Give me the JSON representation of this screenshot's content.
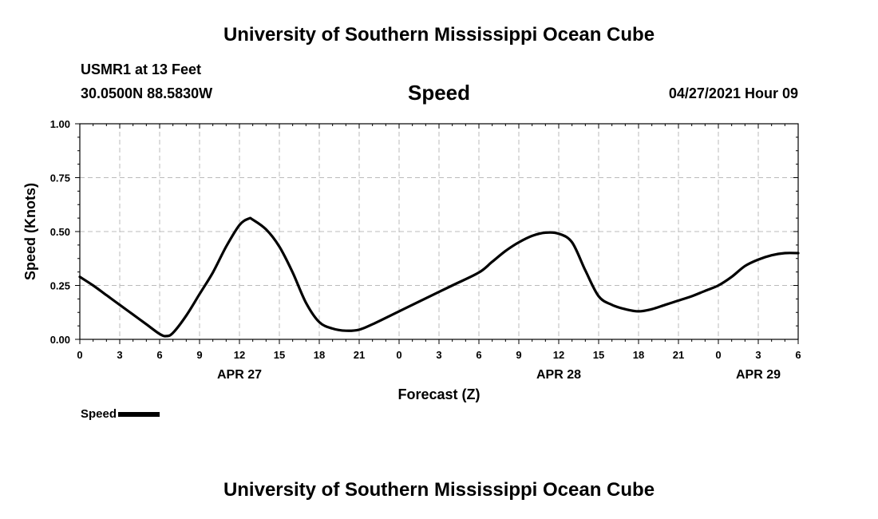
{
  "header": {
    "top_title": "University of Southern Mississippi Ocean Cube",
    "station": "USMR1 at 13 Feet",
    "coords": "30.0500N  88.5830W",
    "chart_title": "Speed",
    "datetime": "04/27/2021 Hour 09"
  },
  "footer": {
    "bottom_title": "University of Southern Mississippi Ocean Cube"
  },
  "legend": {
    "label": "Speed"
  },
  "colors": {
    "line": "#000000",
    "grid": "#bbbbbb",
    "axis": "#000000"
  },
  "chart_data": {
    "type": "line",
    "title": "Speed",
    "xlabel": "Forecast (Z)",
    "ylabel": "Speed (Knots)",
    "x_unit": "hours since APR 27 00Z",
    "xlim": [
      0,
      54
    ],
    "ylim": [
      0,
      1
    ],
    "grid": true,
    "legend_position": "bottom-left",
    "x_ticks": [
      0,
      3,
      6,
      9,
      12,
      15,
      18,
      21,
      24,
      27,
      30,
      33,
      36,
      39,
      42,
      45,
      48,
      51,
      54
    ],
    "x_tick_labels": [
      "0",
      "3",
      "6",
      "9",
      "12",
      "15",
      "18",
      "21",
      "0",
      "3",
      "6",
      "9",
      "12",
      "15",
      "18",
      "21",
      "0",
      "3",
      "6"
    ],
    "date_labels": [
      {
        "x": 12,
        "label": "APR 27"
      },
      {
        "x": 36,
        "label": "APR 28"
      },
      {
        "x": 51,
        "label": "APR 29"
      }
    ],
    "y_ticks": [
      0,
      0.25,
      0.5,
      0.75,
      1.0
    ],
    "y_tick_labels": [
      "0.00",
      "0.25",
      "0.50",
      "0.75",
      "1.00"
    ],
    "series": [
      {
        "name": "Speed",
        "x": [
          0,
          1,
          2,
          3,
          4,
          5,
          6,
          6.5,
          7,
          8,
          9,
          10,
          11,
          12,
          12.7,
          13,
          14,
          15,
          16,
          17,
          18,
          19,
          20,
          21,
          22,
          24,
          26,
          28,
          30,
          31,
          32,
          33,
          34,
          35,
          36,
          37,
          38,
          39,
          40,
          41,
          42,
          43,
          44,
          45,
          46,
          47,
          48,
          49,
          50,
          51,
          52,
          53,
          54
        ],
        "y": [
          0.29,
          0.25,
          0.205,
          0.16,
          0.115,
          0.07,
          0.025,
          0.015,
          0.03,
          0.11,
          0.21,
          0.31,
          0.43,
          0.53,
          0.56,
          0.555,
          0.51,
          0.43,
          0.31,
          0.17,
          0.08,
          0.05,
          0.04,
          0.045,
          0.07,
          0.13,
          0.19,
          0.25,
          0.31,
          0.36,
          0.41,
          0.45,
          0.48,
          0.495,
          0.49,
          0.45,
          0.32,
          0.2,
          0.16,
          0.14,
          0.13,
          0.14,
          0.16,
          0.18,
          0.2,
          0.225,
          0.25,
          0.29,
          0.34,
          0.37,
          0.39,
          0.4,
          0.4
        ]
      }
    ]
  }
}
